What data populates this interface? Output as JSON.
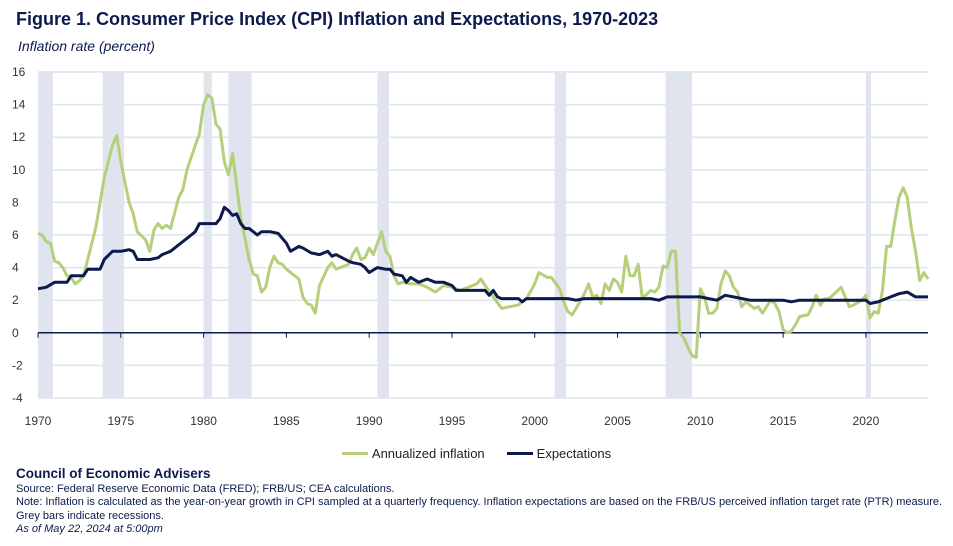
{
  "title": "Figure 1. Consumer Price Index (CPI) Inflation and Expectations, 1970-2023",
  "footer": {
    "org": "Council of Economic Advisers",
    "source": "Source: Federal Reserve Economic Data (FRED); FRB/US; CEA calculations.",
    "note": "Note: Inflation is calculated as the year-on-year growth in CPI sampled at a quarterly frequency. Inflation expectations are based on the FRB/US perceived inflation target rate (PTR) measure.",
    "note2": "Grey bars indicate recessions.",
    "asof": "As of May 22, 2024 at 5:00pm"
  },
  "chart_data": {
    "type": "line",
    "title": "Figure 1. Consumer Price Index (CPI) Inflation and Expectations, 1970-2023",
    "ylabel": "Inflation rate (percent)",
    "xlabel": "",
    "xlim": [
      1970,
      2023.75
    ],
    "ylim": [
      -4,
      16
    ],
    "yticks": [
      -4,
      -2,
      0,
      2,
      4,
      6,
      8,
      10,
      12,
      14,
      16
    ],
    "xticks": [
      1970,
      1975,
      1980,
      1985,
      1990,
      1995,
      2000,
      2005,
      2010,
      2015,
      2020
    ],
    "grid": true,
    "legend_position": "bottom-center",
    "colors": {
      "inflation": "#b5cf7b",
      "expectations": "#0c1a4e",
      "recession": "#dfe4ef",
      "grid": "#dfe4ef"
    },
    "recessions": [
      [
        1970.0,
        1970.9
      ],
      [
        1973.9,
        1975.2
      ],
      [
        1980.0,
        1980.5
      ],
      [
        1981.5,
        1982.9
      ],
      [
        1990.5,
        1991.2
      ],
      [
        2001.2,
        2001.9
      ],
      [
        2007.9,
        2009.5
      ],
      [
        2020.0,
        2020.3
      ]
    ],
    "series": [
      {
        "name": "Annualized inflation",
        "key": "inflation",
        "x": [
          1970,
          1970.25,
          1970.5,
          1970.75,
          1971,
          1971.25,
          1971.5,
          1971.75,
          1972,
          1972.25,
          1972.5,
          1972.75,
          1973,
          1973.5,
          1974,
          1974.5,
          1974.75,
          1975,
          1975.5,
          1975.75,
          1976,
          1976.5,
          1976.75,
          1977,
          1977.25,
          1977.5,
          1977.75,
          1978,
          1978.5,
          1978.75,
          1979,
          1979.5,
          1979.75,
          1980,
          1980.25,
          1980.5,
          1980.75,
          1981,
          1981.25,
          1981.5,
          1981.75,
          1982,
          1982.25,
          1982.5,
          1982.75,
          1983,
          1983.25,
          1983.5,
          1983.75,
          1984,
          1984.25,
          1984.5,
          1984.75,
          1985,
          1985.5,
          1985.75,
          1986,
          1986.25,
          1986.5,
          1986.75,
          1987,
          1987.5,
          1987.75,
          1988,
          1988.5,
          1988.75,
          1989,
          1989.25,
          1989.5,
          1989.75,
          1990,
          1990.25,
          1990.5,
          1990.75,
          1991,
          1991.25,
          1991.5,
          1991.75,
          1992,
          1992.5,
          1993,
          1993.5,
          1994,
          1994.5,
          1995,
          1995.5,
          1996,
          1996.5,
          1996.75,
          1997,
          1997.5,
          1998,
          1998.5,
          1999,
          1999.5,
          2000,
          2000.25,
          2000.75,
          2001,
          2001.5,
          2001.75,
          2002,
          2002.25,
          2002.5,
          2003,
          2003.25,
          2003.5,
          2003.75,
          2004,
          2004.25,
          2004.5,
          2004.75,
          2005,
          2005.25,
          2005.5,
          2005.75,
          2006,
          2006.25,
          2006.5,
          2007,
          2007.25,
          2007.5,
          2007.75,
          2008,
          2008.25,
          2008.5,
          2008.75,
          2009,
          2009.25,
          2009.5,
          2009.75,
          2010,
          2010.25,
          2010.5,
          2010.75,
          2011,
          2011.25,
          2011.5,
          2011.75,
          2012,
          2012.25,
          2012.5,
          2012.75,
          2013,
          2013.25,
          2013.5,
          2013.75,
          2014,
          2014.25,
          2014.5,
          2014.75,
          2015,
          2015.25,
          2015.5,
          2015.75,
          2016,
          2016.5,
          2016.75,
          2017,
          2017.25,
          2017.5,
          2017.75,
          2018,
          2018.5,
          2018.75,
          2019,
          2019.25,
          2019.75,
          2020,
          2020.25,
          2020.5,
          2020.75,
          2021,
          2021.25,
          2021.5,
          2021.75,
          2022,
          2022.25,
          2022.5,
          2022.75,
          2023,
          2023.25,
          2023.5,
          2023.75
        ],
        "y": [
          6.1,
          6.0,
          5.6,
          5.5,
          4.4,
          4.3,
          4.0,
          3.5,
          3.4,
          3.0,
          3.2,
          3.5,
          4.5,
          6.5,
          9.5,
          11.5,
          12.1,
          10.5,
          8.0,
          7.3,
          6.2,
          5.7,
          5.0,
          6.3,
          6.7,
          6.4,
          6.6,
          6.4,
          8.3,
          8.8,
          10.0,
          11.5,
          12.2,
          14.0,
          14.6,
          14.4,
          12.8,
          12.5,
          10.5,
          9.7,
          11.0,
          9.0,
          7.0,
          5.8,
          4.5,
          3.6,
          3.5,
          2.5,
          2.8,
          4.0,
          4.7,
          4.3,
          4.2,
          3.9,
          3.5,
          3.3,
          2.2,
          1.8,
          1.7,
          1.2,
          2.9,
          4.0,
          4.3,
          3.9,
          4.1,
          4.2,
          4.8,
          5.2,
          4.5,
          4.6,
          5.2,
          4.8,
          5.5,
          6.2,
          5.0,
          4.7,
          3.5,
          3.0,
          3.1,
          3.0,
          3.0,
          2.8,
          2.5,
          2.9,
          2.8,
          2.6,
          2.8,
          3.0,
          3.3,
          2.9,
          2.2,
          1.5,
          1.6,
          1.7,
          2.1,
          3.0,
          3.7,
          3.4,
          3.4,
          2.7,
          1.9,
          1.3,
          1.1,
          1.5,
          2.4,
          3.0,
          2.2,
          2.3,
          1.8,
          3.0,
          2.6,
          3.3,
          3.1,
          2.5,
          4.7,
          3.5,
          3.5,
          4.2,
          2.1,
          2.6,
          2.5,
          2.8,
          4.1,
          4.0,
          5.0,
          5.0,
          0.0,
          -0.3,
          -0.9,
          -1.4,
          -1.5,
          2.7,
          2.2,
          1.2,
          1.2,
          1.5,
          3.0,
          3.8,
          3.5,
          2.8,
          2.5,
          1.6,
          1.9,
          1.7,
          1.5,
          1.6,
          1.2,
          1.6,
          2.0,
          1.8,
          1.3,
          0.2,
          0.0,
          0.1,
          0.5,
          1.0,
          1.1,
          1.6,
          2.3,
          1.7,
          2.1,
          2.1,
          2.3,
          2.8,
          2.2,
          1.6,
          1.7,
          2.0,
          2.3,
          0.9,
          1.3,
          1.2,
          2.6,
          5.3,
          5.3,
          6.9,
          8.3,
          8.9,
          8.3,
          6.4,
          5.0,
          3.2,
          3.7,
          3.3
        ]
      },
      {
        "name": "Expectations",
        "key": "expectations",
        "x": [
          1970,
          1970.5,
          1971,
          1971.75,
          1972,
          1972.75,
          1973,
          1973.75,
          1974,
          1974.5,
          1975,
          1975.5,
          1975.75,
          1976,
          1976.75,
          1977.25,
          1977.5,
          1978,
          1978.5,
          1979,
          1979.5,
          1979.75,
          1980,
          1980.75,
          1981,
          1981.25,
          1981.5,
          1981.75,
          1982,
          1982.25,
          1982.5,
          1982.75,
          1983,
          1983.25,
          1983.5,
          1984,
          1984.5,
          1985,
          1985.25,
          1985.75,
          1986,
          1986.5,
          1987,
          1987.5,
          1987.75,
          1988,
          1988.75,
          1989,
          1989.5,
          1989.75,
          1990,
          1990.5,
          1991,
          1991.25,
          1991.5,
          1992,
          1992.25,
          1992.5,
          1993,
          1993.5,
          1994,
          1994.5,
          1995,
          1995.25,
          1997,
          1997.25,
          1997.5,
          1997.75,
          1998,
          1999,
          1999.25,
          1999.5,
          2002,
          2002.5,
          2003,
          2005,
          2007,
          2007.5,
          2008,
          2010,
          2010.5,
          2011,
          2011.5,
          2012,
          2013,
          2015,
          2015.5,
          2016,
          2019,
          2020,
          2020.25,
          2020.75,
          2021.5,
          2022,
          2022.5,
          2023,
          2023.75
        ],
        "y": [
          2.7,
          2.8,
          3.1,
          3.1,
          3.5,
          3.5,
          3.9,
          3.9,
          4.5,
          5.0,
          5.0,
          5.1,
          5.0,
          4.5,
          4.5,
          4.6,
          4.8,
          5.0,
          5.4,
          5.8,
          6.2,
          6.7,
          6.7,
          6.7,
          7.0,
          7.7,
          7.5,
          7.2,
          7.3,
          6.7,
          6.4,
          6.4,
          6.2,
          6.0,
          6.2,
          6.2,
          6.1,
          5.5,
          5.0,
          5.3,
          5.2,
          4.9,
          4.8,
          5.0,
          4.7,
          4.8,
          4.4,
          4.3,
          4.2,
          4.0,
          3.7,
          4.0,
          3.9,
          3.9,
          3.6,
          3.5,
          3.1,
          3.4,
          3.1,
          3.3,
          3.1,
          3.1,
          2.9,
          2.6,
          2.6,
          2.3,
          2.6,
          2.2,
          2.1,
          2.1,
          1.9,
          2.1,
          2.1,
          2.0,
          2.1,
          2.1,
          2.1,
          2.0,
          2.2,
          2.2,
          2.1,
          2.0,
          2.3,
          2.2,
          2.0,
          2.0,
          1.9,
          2.0,
          2.0,
          2.0,
          1.8,
          1.9,
          2.2,
          2.4,
          2.5,
          2.2,
          2.2
        ]
      }
    ]
  }
}
